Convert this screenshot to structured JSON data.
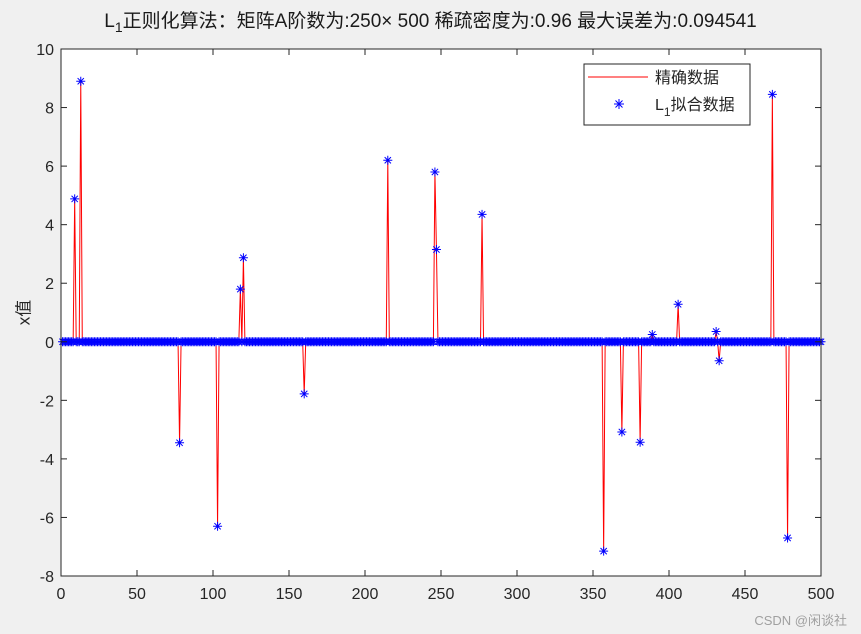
{
  "title": {
    "prefix": "L",
    "subscript": "1",
    "text": "正则化算法：矩阵A阶数为:250× 500  稀疏密度为:0.96  最大误差为:0.094541"
  },
  "watermark": "CSDN @闲谈社",
  "colors": {
    "background": "#f0f0f0",
    "axes_bg": "#ffffff",
    "exact_line": "#ff0000",
    "fit_marker": "#0000ff",
    "axis": "#262626"
  },
  "chart_data": {
    "type": "line",
    "title": "L1正则化算法：矩阵A阶数为:250× 500  稀疏密度为:0.96  最大误差为:0.094541",
    "xlabel": "",
    "ylabel": "x值",
    "xlim": [
      0,
      500
    ],
    "ylim": [
      -8,
      10
    ],
    "xticks": [
      0,
      50,
      100,
      150,
      200,
      250,
      300,
      350,
      400,
      450,
      500
    ],
    "yticks": [
      -8,
      -6,
      -4,
      -2,
      0,
      2,
      4,
      6,
      8,
      10
    ],
    "grid": false,
    "legend_position": "northeast",
    "legend": [
      {
        "label": "精确数据",
        "style": "red line"
      },
      {
        "label_prefix": "L",
        "label_sub": "1",
        "label": "拟合数据",
        "style": "blue asterisk"
      }
    ],
    "n_points": 500,
    "nonzero_x": [
      9,
      13,
      78,
      103,
      118,
      120,
      160,
      215,
      246,
      247,
      277,
      357,
      369,
      381,
      389,
      406,
      431,
      433,
      468,
      478
    ],
    "nonzero_values": [
      4.88,
      8.9,
      -3.45,
      -6.3,
      1.8,
      2.87,
      -1.78,
      6.2,
      5.8,
      3.15,
      4.35,
      -7.15,
      -3.08,
      -3.43,
      0.25,
      1.28,
      0.35,
      -0.65,
      8.45,
      -6.7
    ],
    "series": [
      {
        "name": "精确数据",
        "note": "sparse vector, zero except at nonzero_x"
      },
      {
        "name": "L1拟合数据",
        "note": "recovered vector, matches exact data within max error 0.094541"
      }
    ]
  }
}
